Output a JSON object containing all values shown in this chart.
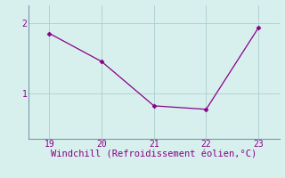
{
  "x": [
    19,
    20,
    21,
    22,
    23
  ],
  "y": [
    1.85,
    1.45,
    0.82,
    0.77,
    1.93
  ],
  "line_color": "#880088",
  "marker": "D",
  "marker_size": 2.5,
  "bg_color": "#d8f0ed",
  "grid_color": "#aacfcc",
  "spine_color": "#7799aa",
  "xlabel": "Windchill (Refroidissement éolien,°C)",
  "xlabel_color": "#880088",
  "xlabel_fontsize": 7.5,
  "tick_color": "#880088",
  "tick_fontsize": 7,
  "yticks": [
    1,
    2
  ],
  "xticks": [
    19,
    20,
    21,
    22,
    23
  ],
  "xlim": [
    18.6,
    23.4
  ],
  "ylim": [
    0.35,
    2.25
  ],
  "title": ""
}
